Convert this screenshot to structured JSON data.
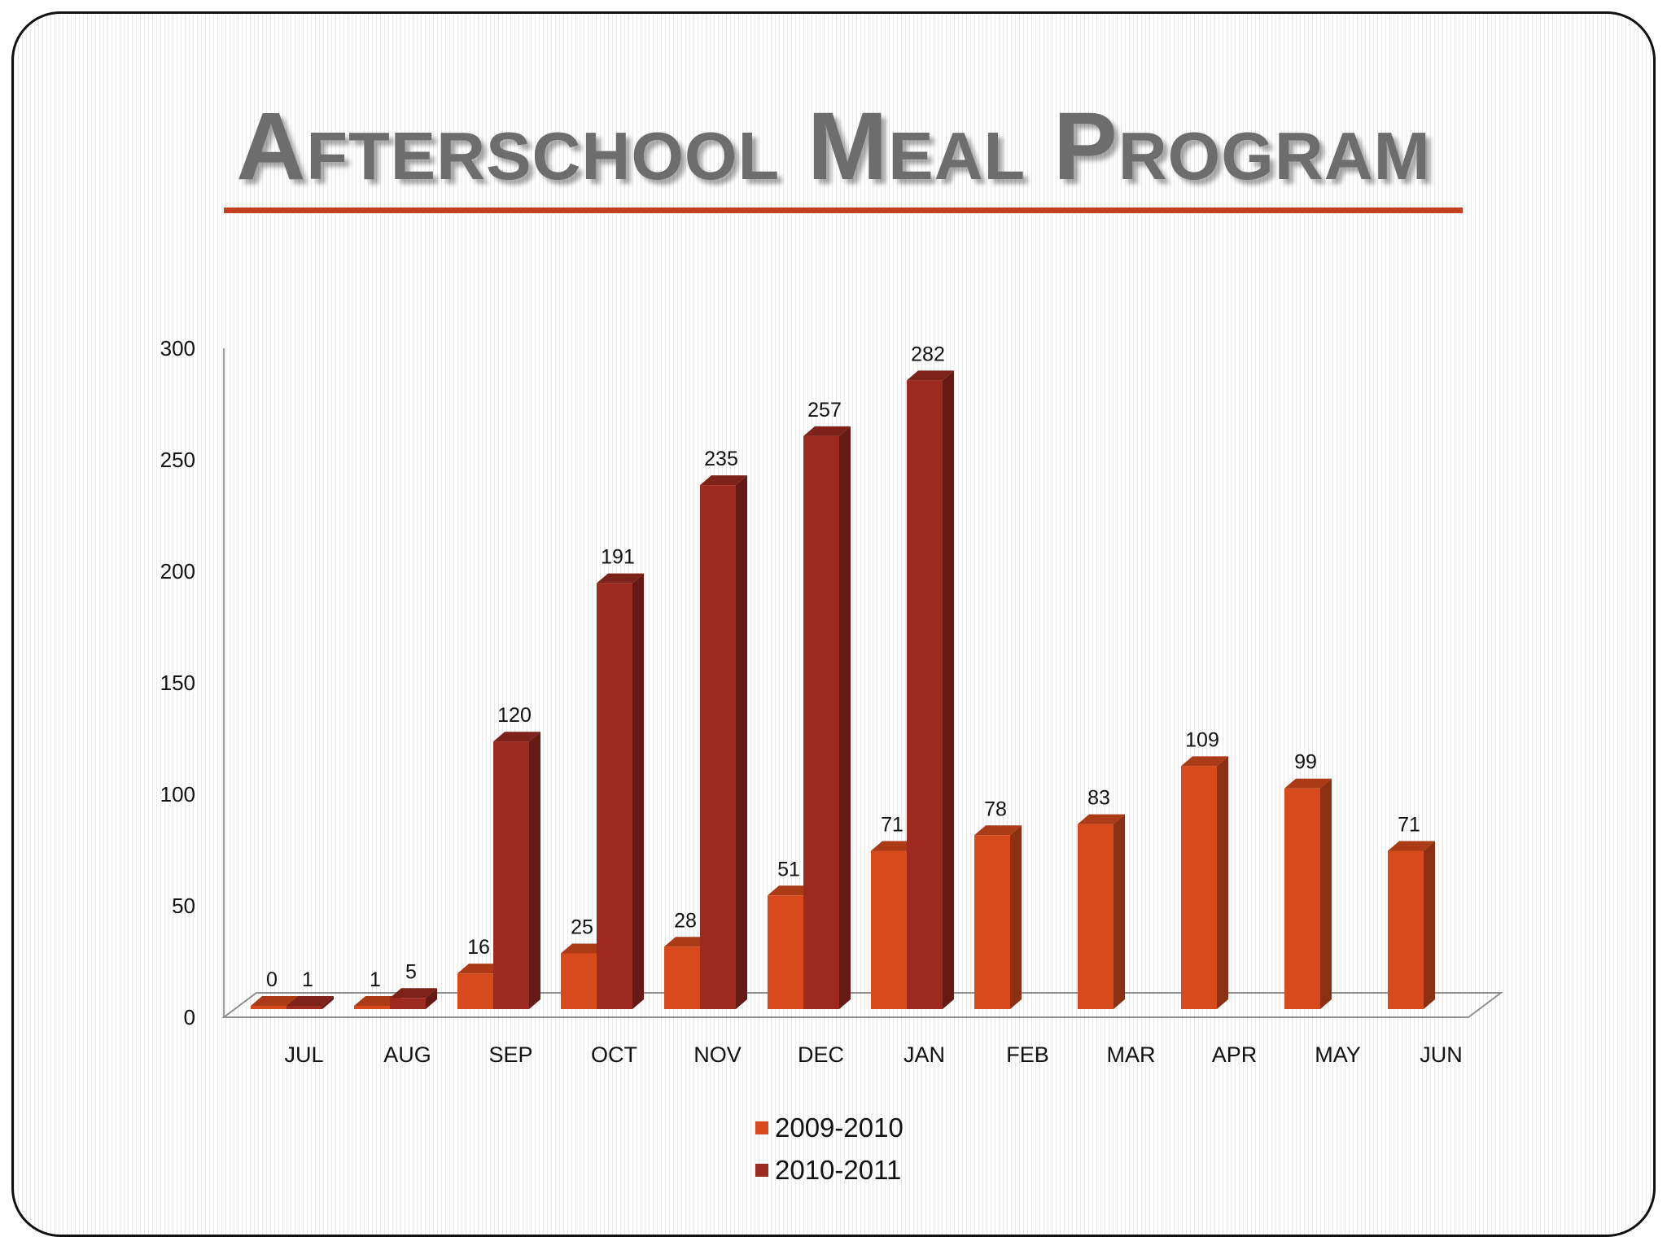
{
  "slide": {
    "title": "Afterschool Meal Program"
  },
  "chart_data": {
    "type": "bar",
    "title": "Afterschool Meal Program",
    "xlabel": "",
    "ylabel": "",
    "ylim": [
      0,
      300
    ],
    "yticks": [
      0,
      50,
      100,
      150,
      200,
      250,
      300
    ],
    "categories": [
      "JUL",
      "AUG",
      "SEP",
      "OCT",
      "NOV",
      "DEC",
      "JAN",
      "FEB",
      "MAR",
      "APR",
      "MAY",
      "JUN"
    ],
    "series": [
      {
        "name": "2009-2010",
        "color": "#d64a1c",
        "values": [
          0,
          1,
          16,
          25,
          28,
          51,
          71,
          78,
          83,
          109,
          99,
          71
        ]
      },
      {
        "name": "2010-2011",
        "color": "#9c2a1e",
        "values": [
          1,
          5,
          120,
          191,
          235,
          257,
          282,
          null,
          null,
          null,
          null,
          null
        ]
      }
    ],
    "legend_position": "bottom-center",
    "grid": false
  }
}
